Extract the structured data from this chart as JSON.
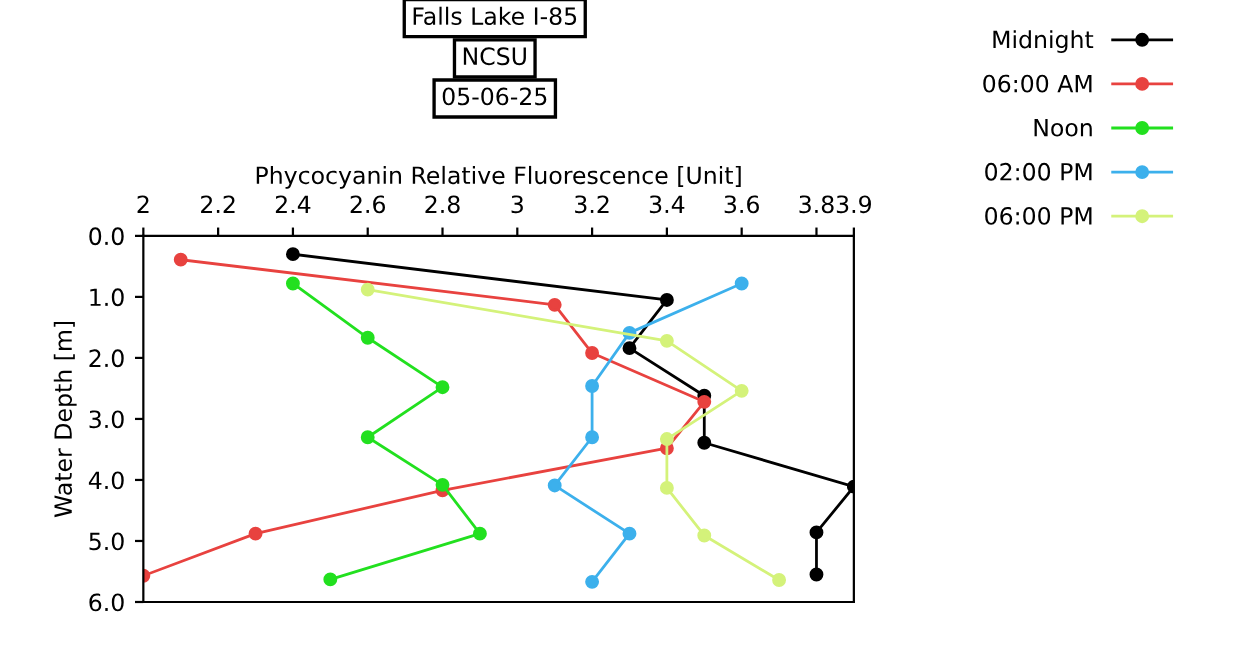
{
  "chart_data": {
    "type": "line",
    "title": "Falls Lake I-85",
    "subtitle": "NCSU",
    "annotations": [
      "05-06-25"
    ],
    "xlabel": "Phycocyanin Relative Fluorescence [Unit]",
    "ylabel": "Water Depth [m]",
    "xlim": [
      2,
      3.9
    ],
    "xticks": [
      2,
      2.2,
      2.4,
      2.6,
      2.8,
      3,
      3.2,
      3.4,
      3.6,
      3.8,
      3.9
    ],
    "ylim": [
      6,
      0
    ],
    "yticks": [
      {
        "value": 0,
        "label": "0.0"
      },
      {
        "value": 1,
        "label": "1.0"
      },
      {
        "value": 2,
        "label": "2.0"
      },
      {
        "value": 3,
        "label": "3.0"
      },
      {
        "value": 4,
        "label": "4.0"
      },
      {
        "value": 5,
        "label": "5.0"
      },
      {
        "value": 6,
        "label": "6.0"
      }
    ],
    "grid": false,
    "legend": "right",
    "marker": "circle",
    "line_style": "solid",
    "series": [
      {
        "name": "Midnight",
        "color": "#000000",
        "x": [
          2.4,
          3.4,
          3.3,
          3.5,
          3.5,
          3.9,
          3.8,
          3.8
        ],
        "values": [
          0.3,
          1.05,
          1.84,
          2.62,
          3.39,
          4.11,
          4.86,
          5.55
        ]
      },
      {
        "name": "06:00 AM",
        "color": "#e8423f",
        "x": [
          2.1,
          3.1,
          3.2,
          3.5,
          3.4,
          2.8,
          2.3,
          2.0
        ],
        "values": [
          0.39,
          1.13,
          1.92,
          2.72,
          3.48,
          4.17,
          4.88,
          5.57
        ]
      },
      {
        "name": "Noon",
        "color": "#22e01f",
        "x": [
          2.4,
          2.6,
          2.8,
          2.6,
          2.8,
          2.9,
          2.5
        ],
        "values": [
          0.78,
          1.67,
          2.48,
          3.3,
          4.08,
          4.88,
          5.63
        ]
      },
      {
        "name": "02:00 PM",
        "color": "#3cb0ec",
        "x": [
          3.6,
          3.3,
          3.2,
          3.2,
          3.1,
          3.3,
          3.2
        ],
        "values": [
          0.78,
          1.59,
          2.46,
          3.3,
          4.09,
          4.88,
          5.67
        ]
      },
      {
        "name": "06:00 PM",
        "color": "#d4f27a",
        "x": [
          2.6,
          3.4,
          3.6,
          3.4,
          3.4,
          3.5,
          3.7
        ],
        "values": [
          0.88,
          1.72,
          2.54,
          3.33,
          4.13,
          4.91,
          5.64
        ]
      }
    ]
  }
}
